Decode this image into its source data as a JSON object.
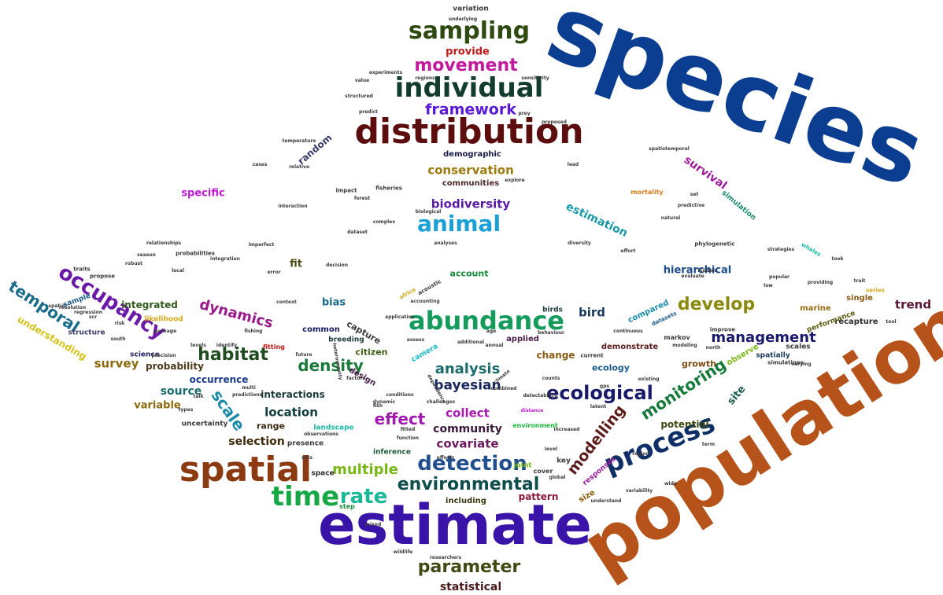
{
  "words": [
    {
      "text": "species",
      "color": "#0b3d91",
      "weight": 100
    },
    {
      "text": "population",
      "color": "#b5531a",
      "weight": 95
    },
    {
      "text": "estimate",
      "color": "#3a13a8",
      "weight": 85
    },
    {
      "text": "distribution",
      "color": "#5c0d0d",
      "weight": 60
    },
    {
      "text": "spatial",
      "color": "#8b3a12",
      "weight": 55
    },
    {
      "text": "individual",
      "color": "#123d2e",
      "weight": 45
    },
    {
      "text": "abundance",
      "color": "#159c5c",
      "weight": 45
    },
    {
      "text": "time",
      "color": "#17a845",
      "weight": 45
    },
    {
      "text": "process",
      "color": "#0f2f66",
      "weight": 42
    },
    {
      "text": "sampling",
      "color": "#2f4a10",
      "weight": 40
    },
    {
      "text": "animal",
      "color": "#1aa0d6",
      "weight": 38
    },
    {
      "text": "detection",
      "color": "#214e8c",
      "weight": 36
    },
    {
      "text": "environmental",
      "color": "#0f4d4d",
      "weight": 34
    },
    {
      "text": "occupancy",
      "color": "#6b1aa8",
      "weight": 32
    },
    {
      "text": "parameter",
      "color": "#3f4a14",
      "weight": 32
    },
    {
      "text": "movement",
      "color": "#c21a9c",
      "weight": 30
    },
    {
      "text": "rate",
      "color": "#1ab897",
      "weight": 30
    },
    {
      "text": "ecological",
      "color": "#1a1a6b",
      "weight": 30
    },
    {
      "text": "develop",
      "color": "#8a8a10",
      "weight": 30
    },
    {
      "text": "temporal",
      "color": "#1a6b8a",
      "weight": 28
    },
    {
      "text": "monitoring",
      "color": "#157a3a",
      "weight": 28
    },
    {
      "text": "framework",
      "color": "#5a1ad6",
      "weight": 27
    },
    {
      "text": "modelling",
      "color": "#5c1a1a",
      "weight": 27
    },
    {
      "text": "habitat",
      "color": "#1f4d1f",
      "weight": 26
    },
    {
      "text": "density",
      "color": "#1a7a3a",
      "weight": 26
    },
    {
      "text": "effect",
      "color": "#a01ab0",
      "weight": 26
    },
    {
      "text": "scale",
      "color": "#1a8aa8",
      "weight": 26
    },
    {
      "text": "dynamics",
      "color": "#9a1a8a",
      "weight": 25
    },
    {
      "text": "management",
      "color": "#1a1a6b",
      "weight": 24
    },
    {
      "text": "multiple",
      "color": "#7ab81a",
      "weight": 24
    },
    {
      "text": "analysis",
      "color": "#1a6b6b",
      "weight": 24
    },
    {
      "text": "bayesian",
      "color": "#1a2a5c",
      "weight": 24
    },
    {
      "text": "biodiversity",
      "color": "#5a1aa8",
      "weight": 22
    },
    {
      "text": "conservation",
      "color": "#9c7a10",
      "weight": 22
    },
    {
      "text": "survey",
      "color": "#8a6b10",
      "weight": 22
    },
    {
      "text": "location",
      "color": "#0f3d3d",
      "weight": 22
    },
    {
      "text": "estimation",
      "color": "#1a9aa8",
      "weight": 20
    },
    {
      "text": "collect",
      "color": "#a81ab0",
      "weight": 20
    },
    {
      "text": "covariate",
      "color": "#6b1a5c",
      "weight": 20
    },
    {
      "text": "community",
      "color": "#3a1a3a",
      "weight": 20
    },
    {
      "text": "statistical",
      "color": "#4a1a1a",
      "weight": 20
    },
    {
      "text": "selection",
      "color": "#3d2a0a",
      "weight": 20
    },
    {
      "text": "source",
      "color": "#1a6b6b",
      "weight": 20
    },
    {
      "text": "survival",
      "color": "#9a1a9a",
      "weight": 18
    },
    {
      "text": "hierarchical",
      "color": "#1a4a8a",
      "weight": 18
    },
    {
      "text": "bird",
      "color": "#1a3a5c",
      "weight": 18
    },
    {
      "text": "trend",
      "color": "#5c1a3a",
      "weight": 18
    },
    {
      "text": "specific",
      "color": "#c01ad6",
      "weight": 17
    },
    {
      "text": "understanding",
      "color": "#d6c21a",
      "weight": 16
    },
    {
      "text": "integrated",
      "color": "#2f5a1a",
      "weight": 16
    },
    {
      "text": "bias",
      "color": "#1a6b8a",
      "weight": 16
    },
    {
      "text": "interactions",
      "color": "#1a3a3a",
      "weight": 16
    },
    {
      "text": "probability",
      "color": "#4a3a1a",
      "weight": 16
    },
    {
      "text": "provide",
      "color": "#c21a1a",
      "weight": 16
    },
    {
      "text": "variable",
      "color": "#8a6b10",
      "weight": 16
    },
    {
      "text": "occurrence",
      "color": "#1a3a8a",
      "weight": 15
    },
    {
      "text": "potential",
      "color": "#3a4a10",
      "weight": 15
    },
    {
      "text": "change",
      "color": "#8a5a10",
      "weight": 15
    },
    {
      "text": "random",
      "color": "#3a3a6b",
      "weight": 15
    },
    {
      "text": "capture",
      "color": "#3a3a3a",
      "weight": 15
    },
    {
      "text": "account",
      "color": "#1a8a3a",
      "weight": 14
    },
    {
      "text": "fit",
      "color": "#4a4a10",
      "weight": 14
    },
    {
      "text": "growth",
      "color": "#7a4a10",
      "weight": 14
    },
    {
      "text": "ecology",
      "color": "#1a5a8a",
      "weight": 14
    },
    {
      "text": "site",
      "color": "#1a5a4a",
      "weight": 14
    },
    {
      "text": "pattern",
      "color": "#8a1a3a",
      "weight": 14
    },
    {
      "text": "range",
      "color": "#3a2a10",
      "weight": 13
    },
    {
      "text": "citizen",
      "color": "#3a5a10",
      "weight": 13
    },
    {
      "text": "communities",
      "color": "#4a2a2a",
      "weight": 12
    },
    {
      "text": "demographic",
      "color": "#1a1a4a",
      "weight": 12
    },
    {
      "text": "compared",
      "color": "#1a8aa8",
      "weight": 12
    },
    {
      "text": "common",
      "color": "#1a1a5c",
      "weight": 12
    },
    {
      "text": "recapture",
      "color": "#2a2a2a",
      "weight": 12
    },
    {
      "text": "applied",
      "color": "#4a1a4a",
      "weight": 12
    },
    {
      "text": "demonstrate",
      "color": "#5a1a1a",
      "weight": 12
    },
    {
      "text": "design",
      "color": "#4a1a4a",
      "weight": 12
    },
    {
      "text": "marine",
      "color": "#9a6b10",
      "weight": 12
    },
    {
      "text": "observe",
      "color": "#7ab81a",
      "weight": 12
    },
    {
      "text": "landscape",
      "color": "#1ab8a8",
      "weight": 11
    },
    {
      "text": "size",
      "color": "#8a5a10",
      "weight": 11
    },
    {
      "text": "single",
      "color": "#8a5a10",
      "weight": 11
    },
    {
      "text": "performance",
      "color": "#5a5a10",
      "weight": 11
    },
    {
      "text": "likelihood",
      "color": "#d6a81a",
      "weight": 11
    },
    {
      "text": "structure",
      "color": "#3a3a6b",
      "weight": 11
    },
    {
      "text": "sample",
      "color": "#1a5a8a",
      "weight": 11
    },
    {
      "text": "presence",
      "color": "#3a3a3a",
      "weight": 11
    },
    {
      "text": "uncertainty",
      "color": "#3a3a3a",
      "weight": 11
    },
    {
      "text": "science",
      "color": "#1a1a5c",
      "weight": 11
    },
    {
      "text": "including",
      "color": "#3a3a10",
      "weight": 11
    },
    {
      "text": "space",
      "color": "#2a2a2a",
      "weight": 11
    },
    {
      "text": "variation",
      "color": "#3a3a3a",
      "weight": 10
    },
    {
      "text": "spatially",
      "color": "#1a3a5c",
      "weight": 10
    },
    {
      "text": "scales",
      "color": "#3a3a3a",
      "weight": 10
    },
    {
      "text": "simulation",
      "color": "#1a8a6b",
      "weight": 10
    },
    {
      "text": "breeding",
      "color": "#1a3a3a",
      "weight": 10
    },
    {
      "text": "inference",
      "color": "#1a5a3a",
      "weight": 10
    },
    {
      "text": "responses",
      "color": "#9a1a9a",
      "weight": 10
    },
    {
      "text": "key",
      "color": "#3a3a3a",
      "weight": 10
    },
    {
      "text": "joint",
      "color": "#7ab81a",
      "weight": 10
    },
    {
      "text": "camera",
      "color": "#1ab8c8",
      "weight": 10
    },
    {
      "text": "birds",
      "color": "#1a3a3a",
      "weight": 10
    },
    {
      "text": "markov",
      "color": "#3a3a3a",
      "weight": 9
    },
    {
      "text": "mortality",
      "color": "#d67a1a",
      "weight": 9
    },
    {
      "text": "cover",
      "color": "#3a3a3a",
      "weight": 9
    },
    {
      "text": "step",
      "color": "#1a8a3a",
      "weight": 9
    },
    {
      "text": "fitting",
      "color": "#c21a1a",
      "weight": 9
    },
    {
      "text": "environment",
      "color": "#1ab83a",
      "weight": 9
    },
    {
      "text": "simulations",
      "color": "#3a3a3a",
      "weight": 8
    },
    {
      "text": "series",
      "color": "#d6a81a",
      "weight": 8
    },
    {
      "text": "whales",
      "color": "#1ab8a8",
      "weight": 8
    },
    {
      "text": "phylogenetic",
      "color": "#3a3a3a",
      "weight": 8
    },
    {
      "text": "traits",
      "color": "#3a3a3a",
      "weight": 8
    },
    {
      "text": "propose",
      "color": "#3a3a3a",
      "weight": 8
    },
    {
      "text": "datasets",
      "color": "#1a5a8a",
      "weight": 8
    },
    {
      "text": "improve",
      "color": "#3a3a3a",
      "weight": 8
    },
    {
      "text": "probabilities",
      "color": "#3a3a3a",
      "weight": 8
    },
    {
      "text": "impact",
      "color": "#3a3a3a",
      "weight": 8
    },
    {
      "text": "fisheries",
      "color": "#3a3a3a",
      "weight": 8
    },
    {
      "text": "current",
      "color": "#3a3a3a",
      "weight": 8
    },
    {
      "text": "africa",
      "color": "#d6a81a",
      "weight": 8
    },
    {
      "text": "acoustic",
      "color": "#3a3a3a",
      "weight": 8
    },
    {
      "text": "wildlife",
      "color": "#3a3a3a",
      "weight": 7
    },
    {
      "text": "modeling",
      "color": "#3a3a3a",
      "weight": 7
    },
    {
      "text": "understand",
      "color": "#3a3a3a",
      "weight": 7
    },
    {
      "text": "local",
      "color": "#3a3a3a",
      "weight": 7
    },
    {
      "text": "south",
      "color": "#3a3a3a",
      "weight": 7
    },
    {
      "text": "levels",
      "color": "#3a3a3a",
      "weight": 7
    },
    {
      "text": "identify",
      "color": "#3a3a3a",
      "weight": 7
    },
    {
      "text": "package",
      "color": "#3a3a3a",
      "weight": 7
    },
    {
      "text": "error",
      "color": "#3a3a3a",
      "weight": 7
    },
    {
      "text": "north",
      "color": "#3a3a3a",
      "weight": 7
    },
    {
      "text": "varying",
      "color": "#3a3a3a",
      "weight": 7
    },
    {
      "text": "latent",
      "color": "#3a3a3a",
      "weight": 7
    },
    {
      "text": "distance",
      "color": "#c21ad6",
      "weight": 7
    },
    {
      "text": "counts",
      "color": "#3a3a3a",
      "weight": 7
    },
    {
      "text": "fish",
      "color": "#3a3a3a",
      "weight": 7
    },
    {
      "text": "global",
      "color": "#3a3a3a",
      "weight": 7
    },
    {
      "text": "level",
      "color": "#3a3a3a",
      "weight": 7
    },
    {
      "text": "analyses",
      "color": "#3a3a3a",
      "weight": 7
    },
    {
      "text": "diversity",
      "color": "#3a3a3a",
      "weight": 7
    },
    {
      "text": "prey",
      "color": "#3a3a3a",
      "weight": 7
    },
    {
      "text": "predict",
      "color": "#3a3a3a",
      "weight": 7
    },
    {
      "text": "spatiotemporal",
      "color": "#3a3a3a",
      "weight": 7
    },
    {
      "text": "mixed",
      "color": "#3a3a3a",
      "weight": 7
    },
    {
      "text": "regression",
      "color": "#3a3a3a",
      "weight": 7
    },
    {
      "text": "underlying",
      "color": "#3a3a3a",
      "weight": 7
    },
    {
      "text": "season",
      "color": "#3a3a3a",
      "weight": 7
    },
    {
      "text": "robust",
      "color": "#3a3a3a",
      "weight": 7
    },
    {
      "text": "resolution",
      "color": "#3a3a3a",
      "weight": 7
    },
    {
      "text": "observations",
      "color": "#3a3a3a",
      "weight": 7
    },
    {
      "text": "biological",
      "color": "#3a3a3a",
      "weight": 7
    },
    {
      "text": "predictive",
      "color": "#3a3a3a",
      "weight": 7
    },
    {
      "text": "natural",
      "color": "#3a3a3a",
      "weight": 7
    },
    {
      "text": "complex",
      "color": "#3a3a3a",
      "weight": 7
    },
    {
      "text": "interaction",
      "color": "#3a3a3a",
      "weight": 7
    },
    {
      "text": "integration",
      "color": "#3a3a3a",
      "weight": 7
    },
    {
      "text": "function",
      "color": "#3a3a3a",
      "weight": 7
    },
    {
      "text": "fitted",
      "color": "#3a3a3a",
      "weight": 7
    },
    {
      "text": "combined",
      "color": "#3a3a3a",
      "weight": 7
    },
    {
      "text": "hidden",
      "color": "#3a3a3a",
      "weight": 7
    },
    {
      "text": "popular",
      "color": "#3a3a3a",
      "weight": 7
    },
    {
      "text": "trait",
      "color": "#3a3a3a",
      "weight": 7
    },
    {
      "text": "sets",
      "color": "#3a3a3a",
      "weight": 7
    },
    {
      "text": "gps",
      "color": "#3a3a3a",
      "weight": 7
    },
    {
      "text": "increased",
      "color": "#3a3a3a",
      "weight": 7
    },
    {
      "text": "wide",
      "color": "#3a3a3a",
      "weight": 7
    },
    {
      "text": "variability",
      "color": "#3a3a3a",
      "weight": 7
    },
    {
      "text": "conditions",
      "color": "#3a3a3a",
      "weight": 7
    },
    {
      "text": "efforts",
      "color": "#3a3a3a",
      "weight": 7
    },
    {
      "text": "structured",
      "color": "#3a3a3a",
      "weight": 7
    },
    {
      "text": "proposed",
      "color": "#3a3a3a",
      "weight": 7
    },
    {
      "text": "multi",
      "color": "#3a3a3a",
      "weight": 7
    },
    {
      "text": "predictions",
      "color": "#3a3a3a",
      "weight": 7
    },
    {
      "text": "talk",
      "color": "#3a3a3a",
      "weight": 7
    },
    {
      "text": "types",
      "color": "#3a3a3a",
      "weight": 7
    },
    {
      "text": "future",
      "color": "#3a3a3a",
      "weight": 7
    },
    {
      "text": "factors",
      "color": "#3a3a3a",
      "weight": 7
    },
    {
      "text": "assess",
      "color": "#3a3a3a",
      "weight": 7
    },
    {
      "text": "challenges",
      "color": "#3a3a3a",
      "weight": 7
    },
    {
      "text": "detectability",
      "color": "#3a3a3a",
      "weight": 7
    },
    {
      "text": "dynamic",
      "color": "#3a3a3a",
      "weight": 7
    },
    {
      "text": "additional",
      "color": "#3a3a3a",
      "weight": 7
    },
    {
      "text": "continuous",
      "color": "#3a3a3a",
      "weight": 7
    },
    {
      "text": "term",
      "color": "#3a3a3a",
      "weight": 7
    },
    {
      "text": "region",
      "color": "#3a3a3a",
      "weight": 7
    },
    {
      "text": "dependence",
      "color": "#3a3a3a",
      "weight": 7
    },
    {
      "text": "temperature",
      "color": "#3a3a3a",
      "weight": 7
    },
    {
      "text": "relative",
      "color": "#3a3a3a",
      "weight": 7
    },
    {
      "text": "heterogeneity",
      "color": "#3a3a3a",
      "weight": 7
    },
    {
      "text": "accounting",
      "color": "#3a3a3a",
      "weight": 7
    },
    {
      "text": "application",
      "color": "#3a3a3a",
      "weight": 7
    },
    {
      "text": "behaviour",
      "color": "#3a3a3a",
      "weight": 7
    },
    {
      "text": "effort",
      "color": "#3a3a3a",
      "weight": 7
    },
    {
      "text": "evaluate",
      "color": "#3a3a3a",
      "weight": 7
    },
    {
      "text": "providing",
      "color": "#3a3a3a",
      "weight": 7
    },
    {
      "text": "low",
      "color": "#3a3a3a",
      "weight": 7
    },
    {
      "text": "took",
      "color": "#3a3a3a",
      "weight": 7
    },
    {
      "text": "researchers",
      "color": "#3a3a3a",
      "weight": 7
    },
    {
      "text": "decision",
      "color": "#3a3a3a",
      "weight": 7
    },
    {
      "text": "fishing",
      "color": "#3a3a3a",
      "weight": 7
    },
    {
      "text": "precision",
      "color": "#3a3a3a",
      "weight": 7
    },
    {
      "text": "forest",
      "color": "#3a3a3a",
      "weight": 7
    },
    {
      "text": "dataset",
      "color": "#3a3a3a",
      "weight": 7
    },
    {
      "text": "value",
      "color": "#3a3a3a",
      "weight": 7
    },
    {
      "text": "lead",
      "color": "#3a3a3a",
      "weight": 7
    },
    {
      "text": "set",
      "color": "#3a3a3a",
      "weight": 7
    },
    {
      "text": "explore",
      "color": "#3a3a3a",
      "weight": 7
    },
    {
      "text": "regions",
      "color": "#3a3a3a",
      "weight": 7
    },
    {
      "text": "experiments",
      "color": "#3a3a3a",
      "weight": 7
    },
    {
      "text": "strategies",
      "color": "#3a3a3a",
      "weight": 7
    },
    {
      "text": "sensitivity",
      "color": "#3a3a3a",
      "weight": 7
    },
    {
      "text": "risk",
      "color": "#3a3a3a",
      "weight": 7
    },
    {
      "text": "tool",
      "color": "#3a3a3a",
      "weight": 7
    },
    {
      "text": "relationships",
      "color": "#3a3a3a",
      "weight": 7
    },
    {
      "text": "cases",
      "color": "#3a3a3a",
      "weight": 7
    },
    {
      "text": "context",
      "color": "#3a3a3a",
      "weight": 7
    },
    {
      "text": "age",
      "color": "#3a3a3a",
      "weight": 7
    },
    {
      "text": "annual",
      "color": "#3a3a3a",
      "weight": 7
    },
    {
      "text": "climate",
      "color": "#3a3a3a",
      "weight": 7
    },
    {
      "text": "existing",
      "color": "#3a3a3a",
      "weight": 7
    },
    {
      "text": "spatio",
      "color": "#3a3a3a",
      "weight": 7
    },
    {
      "text": "scr",
      "color": "#3a3a3a",
      "weight": 7
    },
    {
      "text": "imperfect",
      "color": "#3a3a3a",
      "weight": 7
    }
  ]
}
